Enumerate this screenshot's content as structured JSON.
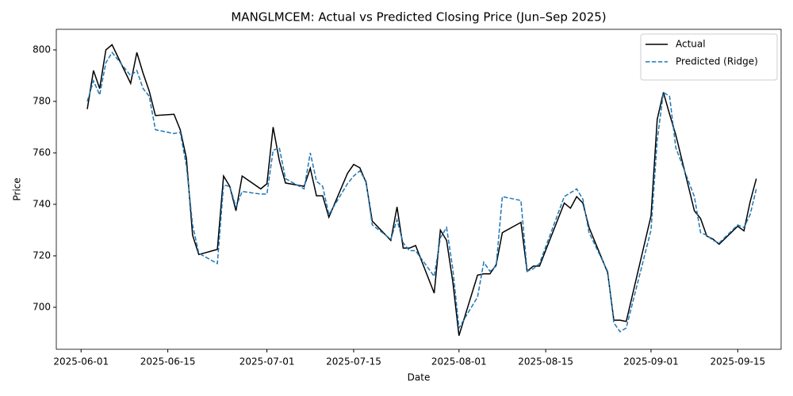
{
  "chart_data": {
    "type": "line",
    "title": "MANGLMCEM: Actual vs Predicted Closing Price (Jun–Sep 2025)",
    "xlabel": "Date",
    "ylabel": "Price",
    "x": [
      "2025-06-02",
      "2025-06-03",
      "2025-06-04",
      "2025-06-05",
      "2025-06-06",
      "2025-06-09",
      "2025-06-10",
      "2025-06-11",
      "2025-06-12",
      "2025-06-13",
      "2025-06-16",
      "2025-06-17",
      "2025-06-18",
      "2025-06-19",
      "2025-06-20",
      "2025-06-23",
      "2025-06-24",
      "2025-06-25",
      "2025-06-26",
      "2025-06-27",
      "2025-06-30",
      "2025-07-01",
      "2025-07-02",
      "2025-07-03",
      "2025-07-04",
      "2025-07-07",
      "2025-07-08",
      "2025-07-09",
      "2025-07-10",
      "2025-07-11",
      "2025-07-14",
      "2025-07-15",
      "2025-07-16",
      "2025-07-17",
      "2025-07-18",
      "2025-07-21",
      "2025-07-22",
      "2025-07-23",
      "2025-07-24",
      "2025-07-25",
      "2025-07-28",
      "2025-07-29",
      "2025-07-30",
      "2025-07-31",
      "2025-08-01",
      "2025-08-04",
      "2025-08-05",
      "2025-08-06",
      "2025-08-07",
      "2025-08-08",
      "2025-08-11",
      "2025-08-12",
      "2025-08-13",
      "2025-08-14",
      "2025-08-18",
      "2025-08-19",
      "2025-08-20",
      "2025-08-21",
      "2025-08-22",
      "2025-08-25",
      "2025-08-26",
      "2025-08-27",
      "2025-08-28",
      "2025-09-01",
      "2025-09-02",
      "2025-09-03",
      "2025-09-04",
      "2025-09-05",
      "2025-09-08",
      "2025-09-09",
      "2025-09-10",
      "2025-09-11",
      "2025-09-12",
      "2025-09-15",
      "2025-09-16",
      "2025-09-17",
      "2025-09-18"
    ],
    "series": [
      {
        "name": "Actual",
        "color": "#000000",
        "dash": false,
        "values": [
          777,
          792,
          785,
          800,
          802,
          787,
          799,
          791,
          784,
          774.5,
          775,
          769,
          758,
          728,
          720.5,
          722.5,
          751,
          747,
          737.5,
          751,
          746,
          748,
          770,
          757,
          748.3,
          747,
          754,
          743.3,
          743.3,
          735,
          752,
          755.5,
          754.2,
          748.5,
          733.5,
          726,
          739,
          723,
          723,
          724,
          705.5,
          730,
          726,
          710,
          689,
          712.5,
          713,
          713,
          716.5,
          729,
          733,
          714,
          716,
          716,
          740.5,
          738.5,
          743,
          740.5,
          731,
          713.5,
          695,
          695,
          694.5,
          735.5,
          773,
          783.5,
          775,
          767,
          737.5,
          734.5,
          727.7,
          726.5,
          724.5,
          731.5,
          729.7,
          741,
          750
        ]
      },
      {
        "name": "Predicted (Ridge)",
        "color": "#1f77b4",
        "dash": true,
        "values": [
          780,
          788,
          782.5,
          795,
          799,
          790,
          792,
          785,
          782,
          769,
          767.5,
          768,
          755,
          732,
          721,
          717,
          747.5,
          747,
          739,
          745,
          744,
          744,
          761,
          762,
          750,
          746,
          760,
          749,
          747,
          736,
          748,
          751,
          753,
          749,
          732,
          726.5,
          734,
          725,
          722,
          722,
          712,
          727,
          731,
          715,
          692,
          704,
          717.5,
          714,
          716,
          743,
          741.5,
          714,
          715,
          717,
          743,
          744.5,
          746,
          742,
          729,
          714,
          694,
          690.5,
          692,
          730,
          765,
          783.5,
          782,
          762,
          743,
          729,
          728,
          726,
          725,
          732,
          731,
          736,
          746
        ]
      }
    ],
    "xlim": [
      "2025-05-28",
      "2025-09-22"
    ],
    "xticks": [
      "2025-06-01",
      "2025-06-15",
      "2025-07-01",
      "2025-07-15",
      "2025-08-01",
      "2025-08-15",
      "2025-09-01",
      "2025-09-15"
    ],
    "ylim": [
      683.7,
      808
    ],
    "yticks": [
      700,
      720,
      740,
      760,
      780,
      800
    ],
    "grid": false,
    "legend": "upper right"
  }
}
